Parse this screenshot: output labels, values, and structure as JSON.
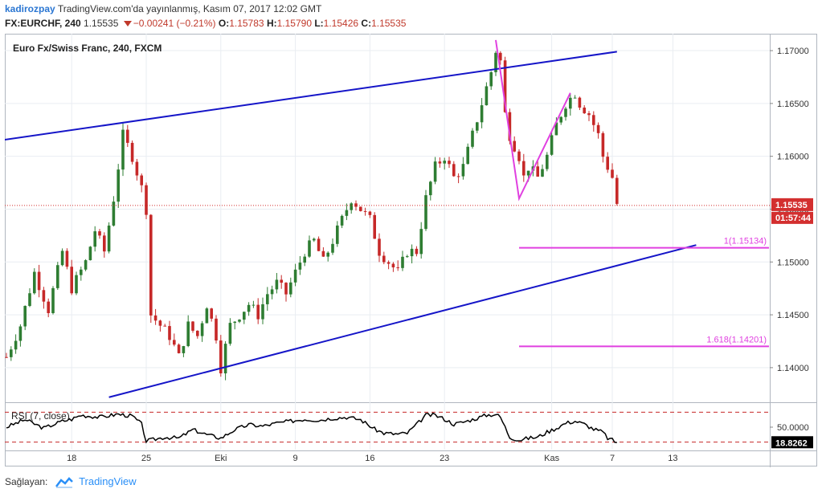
{
  "header": {
    "author": "kadirozpay",
    "published_text": "TradingView.com'da yayınlanmış, Kasım 07, 2017 12:02 GMT",
    "symbol": "FX:EURCHF, 240",
    "last": "1.15535",
    "change": "−0.00241 (−0.21%)",
    "o_label": "O:",
    "o": "1.15783",
    "h_label": "H:",
    "h": "1.15790",
    "l_label": "L:",
    "l": "1.15426",
    "c_label": "C:",
    "c": "1.15535"
  },
  "footer": {
    "provider_label": "Sağlayan:",
    "brand": "TradingView"
  },
  "colors": {
    "up_candle": "#2e7d32",
    "down_candle": "#c62828",
    "trendline": "#1515c8",
    "fib": "#e040e0",
    "price_tag": "#d32f2f",
    "rsi": "#000000",
    "rsi_levels": "#c62828",
    "grid": "#e9edf2"
  },
  "chart_data": [
    {
      "type": "candlestick",
      "title": "Euro Fx/Swiss Franc, 240, FXCM",
      "ylim": [
        1.1368,
        1.1716
      ],
      "y_ticks": [
        "1.17000",
        "1.16500",
        "1.16000",
        "1.15500",
        "1.15000",
        "1.14500",
        "1.14000"
      ],
      "x_ticks": [
        {
          "label": "18",
          "idx": 14
        },
        {
          "label": "25",
          "idx": 30
        },
        {
          "label": "Eki",
          "idx": 46
        },
        {
          "label": "9",
          "idx": 62
        },
        {
          "label": "16",
          "idx": 78
        },
        {
          "label": "23",
          "idx": 94
        },
        {
          "label": "Kas",
          "idx": 117
        },
        {
          "label": "7",
          "idx": 130
        },
        {
          "label": "13",
          "idx": 143
        }
      ],
      "last_price_label": "1.15535",
      "countdown_label": "01:57:44",
      "close_path": [
        [
          0,
          1.141
        ],
        [
          3,
          1.144
        ],
        [
          6,
          1.149
        ],
        [
          9,
          1.1455
        ],
        [
          12,
          1.151
        ],
        [
          14,
          1.1475
        ],
        [
          17,
          1.15
        ],
        [
          19,
          1.153
        ],
        [
          21,
          1.151
        ],
        [
          23,
          1.156
        ],
        [
          25,
          1.162
        ],
        [
          27,
          1.16
        ],
        [
          29,
          1.157
        ],
        [
          30,
          1.155
        ],
        [
          31,
          1.145
        ],
        [
          33,
          1.144
        ],
        [
          35,
          1.143
        ],
        [
          37,
          1.141
        ],
        [
          39,
          1.144
        ],
        [
          41,
          1.143
        ],
        [
          43,
          1.146
        ],
        [
          45,
          1.143
        ],
        [
          46,
          1.14
        ],
        [
          48,
          1.144
        ],
        [
          50,
          1.145
        ],
        [
          52,
          1.146
        ],
        [
          54,
          1.145
        ],
        [
          56,
          1.147
        ],
        [
          58,
          1.148
        ],
        [
          60,
          1.147
        ],
        [
          62,
          1.149
        ],
        [
          64,
          1.151
        ],
        [
          66,
          1.152
        ],
        [
          68,
          1.15
        ],
        [
          70,
          1.152
        ],
        [
          72,
          1.154
        ],
        [
          74,
          1.156
        ],
        [
          76,
          1.155
        ],
        [
          78,
          1.154
        ],
        [
          80,
          1.151
        ],
        [
          82,
          1.15
        ],
        [
          84,
          1.149
        ],
        [
          86,
          1.151
        ],
        [
          88,
          1.151
        ],
        [
          90,
          1.156
        ],
        [
          92,
          1.159
        ],
        [
          94,
          1.16
        ],
        [
          96,
          1.158
        ],
        [
          98,
          1.159
        ],
        [
          100,
          1.162
        ],
        [
          102,
          1.165
        ],
        [
          104,
          1.168
        ],
        [
          105,
          1.17
        ],
        [
          106,
          1.169
        ],
        [
          107,
          1.164
        ],
        [
          108,
          1.162
        ],
        [
          110,
          1.16
        ],
        [
          111,
          1.158
        ],
        [
          112,
          1.159
        ],
        [
          114,
          1.158
        ],
        [
          116,
          1.16
        ],
        [
          118,
          1.163
        ],
        [
          120,
          1.165
        ],
        [
          122,
          1.166
        ],
        [
          123,
          1.165
        ],
        [
          125,
          1.164
        ],
        [
          127,
          1.162
        ],
        [
          128,
          1.16
        ],
        [
          129,
          1.159
        ],
        [
          130,
          1.158
        ],
        [
          131,
          1.1555
        ]
      ],
      "annotations": {
        "channel_upper": [
          [
            -22,
            1.1602
          ],
          [
            131,
            1.1699
          ]
        ],
        "channel_lower": [
          [
            22,
            1.1372
          ],
          [
            148,
            1.1516
          ]
        ],
        "swing_path": [
          [
            105,
            1.171
          ],
          [
            110,
            1.156
          ],
          [
            121,
            1.166
          ]
        ],
        "fib_1": {
          "label": "1(1.15134)",
          "value": 1.15134,
          "x_from": 110
        },
        "fib_1618": {
          "label": "1.618(1.14201)",
          "value": 1.14201,
          "x_from": 110
        },
        "last_price": 1.15535
      }
    },
    {
      "type": "line",
      "title": "RSI (7, close)",
      "ylim": [
        5,
        95
      ],
      "y_ticks": [
        "50.0000"
      ],
      "levels": [
        80,
        20
      ],
      "value_label": "18.8262",
      "points": [
        [
          0,
          50
        ],
        [
          4,
          65
        ],
        [
          8,
          48
        ],
        [
          12,
          62
        ],
        [
          14,
          66
        ],
        [
          16,
          74
        ],
        [
          20,
          70
        ],
        [
          24,
          76
        ],
        [
          27,
          72
        ],
        [
          29,
          56
        ],
        [
          30,
          22
        ],
        [
          31,
          24
        ],
        [
          34,
          30
        ],
        [
          37,
          28
        ],
        [
          40,
          45
        ],
        [
          43,
          35
        ],
        [
          46,
          28
        ],
        [
          49,
          45
        ],
        [
          52,
          55
        ],
        [
          55,
          52
        ],
        [
          58,
          58
        ],
        [
          61,
          62
        ],
        [
          64,
          66
        ],
        [
          67,
          64
        ],
        [
          70,
          68
        ],
        [
          73,
          70
        ],
        [
          76,
          65
        ],
        [
          79,
          46
        ],
        [
          81,
          38
        ],
        [
          84,
          36
        ],
        [
          86,
          38
        ],
        [
          88,
          55
        ],
        [
          90,
          74
        ],
        [
          92,
          74
        ],
        [
          94,
          66
        ],
        [
          96,
          56
        ],
        [
          98,
          60
        ],
        [
          101,
          68
        ],
        [
          103,
          74
        ],
        [
          105,
          76
        ],
        [
          106,
          70
        ],
        [
          107,
          50
        ],
        [
          108,
          30
        ],
        [
          110,
          24
        ],
        [
          112,
          28
        ],
        [
          114,
          30
        ],
        [
          116,
          40
        ],
        [
          118,
          48
        ],
        [
          120,
          58
        ],
        [
          122,
          62
        ],
        [
          124,
          56
        ],
        [
          126,
          46
        ],
        [
          128,
          40
        ],
        [
          129,
          28
        ],
        [
          130,
          24
        ],
        [
          131,
          19
        ]
      ]
    }
  ]
}
